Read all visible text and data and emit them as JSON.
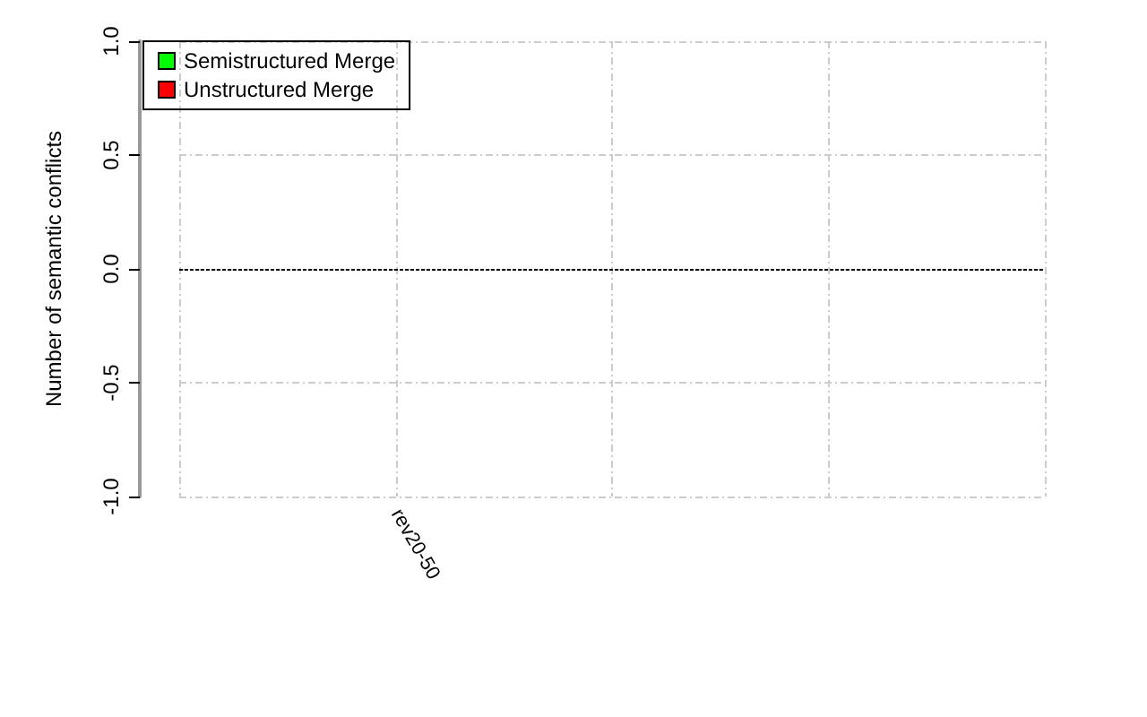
{
  "chart_data": {
    "type": "bar",
    "ylabel": "Number of semantic conflicts",
    "categories": [
      null,
      "rev20-50",
      null,
      null,
      null
    ],
    "series": [
      {
        "name": "Semistructured Merge",
        "color": "#00ff00",
        "values": [
          0,
          0,
          0,
          0,
          0
        ]
      },
      {
        "name": "Unstructured Merge",
        "color": "#ff0000",
        "values": [
          0,
          0,
          0,
          0,
          0
        ]
      }
    ],
    "ylim": [
      -1,
      1
    ],
    "yticks": [
      {
        "value": -1,
        "label": "-1.0"
      },
      -0.5,
      {
        "value": 0,
        "label": "0.0"
      },
      0.5,
      {
        "value": 1,
        "label": "1.0"
      }
    ],
    "ref_lines": [
      {
        "axis": "y",
        "value": 0,
        "color": "#000000",
        "line_style": "dotted"
      }
    ],
    "grid": true,
    "legend": "top left"
  }
}
